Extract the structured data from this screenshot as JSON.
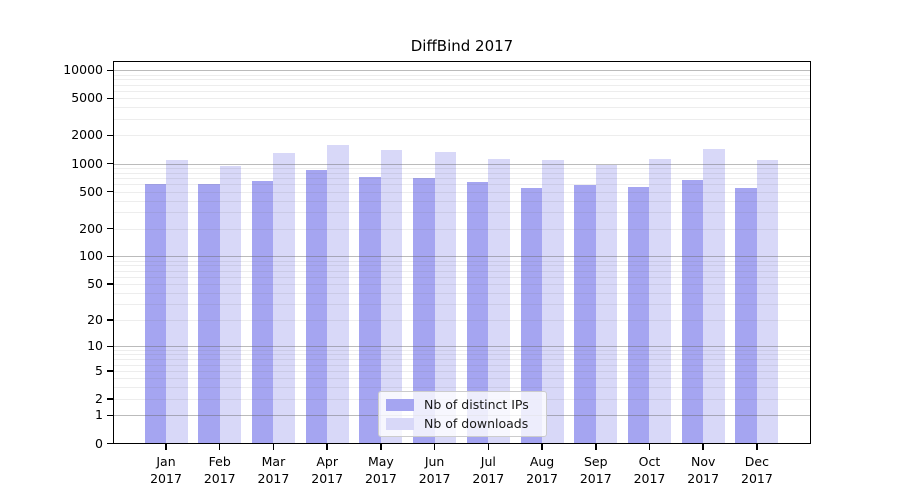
{
  "chart_data": {
    "type": "bar",
    "title": "DiffBind 2017",
    "x_year_label": "2017",
    "categories": [
      "Jan",
      "Feb",
      "Mar",
      "Apr",
      "May",
      "Jun",
      "Jul",
      "Aug",
      "Sep",
      "Oct",
      "Nov",
      "Dec"
    ],
    "series": [
      {
        "name": "Nb of distinct IPs",
        "color": "#a5a5f1",
        "values": [
          600,
          600,
          650,
          850,
          720,
          700,
          630,
          550,
          590,
          560,
          660,
          550
        ]
      },
      {
        "name": "Nb of downloads",
        "color": "#d8d8f8",
        "values": [
          1100,
          930,
          1300,
          1600,
          1400,
          1330,
          1130,
          1100,
          970,
          1130,
          1430,
          1100
        ]
      }
    ],
    "y_scale": "log10(value+1)",
    "y_ticks": [
      0,
      1,
      2,
      5,
      10,
      20,
      50,
      100,
      200,
      500,
      1000,
      2000,
      5000,
      10000
    ],
    "ylim": [
      0,
      10000
    ],
    "grid": "major gridlines at decades, minor log gridlines (2-9 per decade), drawn over bars",
    "legend_position": "lower center"
  }
}
